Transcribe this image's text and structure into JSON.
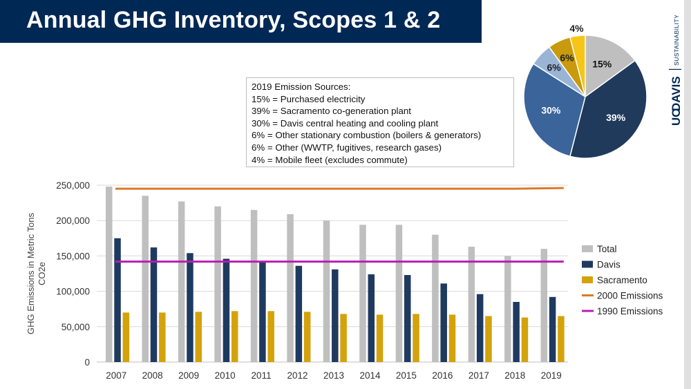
{
  "slide": {
    "title": "Annual GHG Inventory, Scopes 1 & 2"
  },
  "brand": {
    "uc": "UC",
    "davis": "DAVIS",
    "sustainability": "SUSTAINABILITY"
  },
  "sources_box": {
    "heading": "2019 Emission Sources:",
    "lines": [
      "15% = Purchased electricity",
      "39% = Sacramento co-generation plant",
      "30% = Davis central heating and cooling plant",
      "6% = Other stationary combustion (boilers & generators)",
      "6% = Other (WWTP, fugitives, research gases)",
      "4% = Mobile fleet (excludes commute)"
    ]
  },
  "colors": {
    "title_bg": "#002855",
    "total": "#bfbfbf",
    "davis": "#1f3a5f",
    "sacramento": "#d4a20a",
    "e2000": "#d97b29",
    "e1990": "#b61fb3"
  },
  "chart_data": [
    {
      "type": "bar",
      "ylabel": "GHG Emissions in Metric Tons CO2e",
      "ylim": [
        0,
        250000
      ],
      "yticks": [
        0,
        50000,
        100000,
        150000,
        200000,
        250000
      ],
      "ytick_labels": [
        "0",
        "50,000",
        "100,000",
        "150,000",
        "200,000",
        "250,000"
      ],
      "grid": true,
      "legend_position": "right",
      "categories": [
        "2007",
        "2008",
        "2009",
        "2010",
        "2011",
        "2012",
        "2013",
        "2014",
        "2015",
        "2016",
        "2017",
        "2018",
        "2019"
      ],
      "series": [
        {
          "name": "Total",
          "kind": "bar",
          "color": "#bfbfbf",
          "values": [
            248000,
            235000,
            227000,
            220000,
            215000,
            209000,
            200000,
            194000,
            194000,
            180000,
            163000,
            150000,
            160000
          ]
        },
        {
          "name": "Davis",
          "kind": "bar",
          "color": "#1f3a5f",
          "values": [
            175000,
            162000,
            154000,
            146000,
            143000,
            136000,
            131000,
            124000,
            123000,
            111000,
            96000,
            85000,
            92000
          ]
        },
        {
          "name": "Sacramento",
          "kind": "bar",
          "color": "#d4a20a",
          "values": [
            70000,
            70000,
            71000,
            72000,
            72000,
            71000,
            68000,
            67000,
            68000,
            67000,
            65000,
            63000,
            65000
          ]
        },
        {
          "name": "2000 Emissions",
          "kind": "line",
          "color": "#d97b29",
          "values": [
            245000,
            245000,
            245000,
            245000,
            245000,
            245000,
            245000,
            245000,
            245000,
            245000,
            245000,
            245000,
            246000
          ]
        },
        {
          "name": "1990 Emissions",
          "kind": "line",
          "color": "#b61fb3",
          "values": [
            142000,
            142000,
            142000,
            142000,
            142000,
            142000,
            142000,
            142000,
            142000,
            142000,
            142000,
            142000,
            142000
          ]
        }
      ]
    },
    {
      "type": "pie",
      "slices": [
        {
          "label": "15%",
          "value": 15,
          "color": "#bfbfbf",
          "text_color": "#111111"
        },
        {
          "label": "39%",
          "value": 39,
          "color": "#203a5c",
          "text_color": "#ffffff"
        },
        {
          "label": "30%",
          "value": 30,
          "color": "#3a649a",
          "text_color": "#ffffff"
        },
        {
          "label": "6%",
          "value": 6,
          "color": "#9ab4d6",
          "text_color": "#222222"
        },
        {
          "label": "6%",
          "value": 6,
          "color": "#c89a0c",
          "text_color": "#222222"
        },
        {
          "label": "4%",
          "value": 4,
          "color": "#f5c518",
          "text_color": "#222222"
        }
      ]
    }
  ]
}
